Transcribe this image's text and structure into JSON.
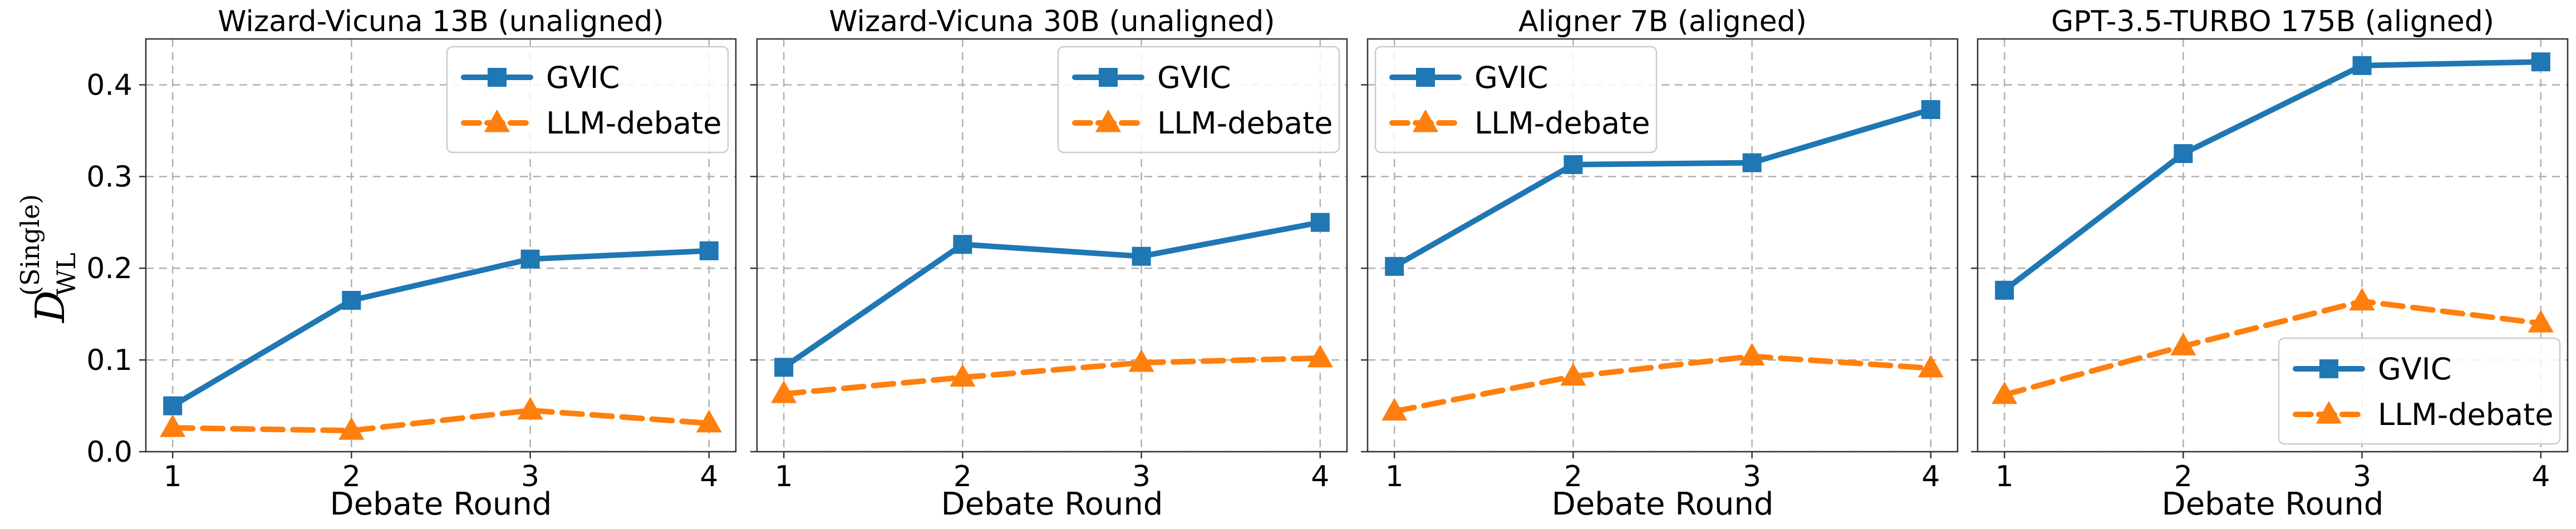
{
  "chart_data": [
    {
      "type": "line",
      "title": "Wizard-Vicuna 13B (unaligned)",
      "xlabel": "Debate Round",
      "ylabel_main": "D",
      "ylabel_sub": "WL",
      "ylabel_sup": "(Single)",
      "x": [
        1,
        2,
        3,
        4
      ],
      "xlim": [
        0.85,
        4.15
      ],
      "ylim": [
        0,
        0.45
      ],
      "yticks": [
        "0.0",
        "0.1",
        "0.2",
        "0.3",
        "0.4"
      ],
      "grid": true,
      "legend": "top-right",
      "series": [
        {
          "name": "GVIC",
          "values": [
            0.05,
            0.165,
            0.21,
            0.219
          ],
          "color": "#1f77b4",
          "marker": "square",
          "dash": "solid"
        },
        {
          "name": "LLM-debate",
          "values": [
            0.026,
            0.023,
            0.045,
            0.031
          ],
          "color": "#ff7f0e",
          "marker": "triangle",
          "dash": "dashed"
        }
      ]
    },
    {
      "type": "line",
      "title": "Wizard-Vicuna 30B (unaligned)",
      "xlabel": "Debate Round",
      "x": [
        1,
        2,
        3,
        4
      ],
      "xlim": [
        0.85,
        4.15
      ],
      "ylim": [
        0,
        0.45
      ],
      "grid": true,
      "legend": "top-right",
      "series": [
        {
          "name": "GVIC",
          "values": [
            0.092,
            0.226,
            0.213,
            0.25
          ],
          "color": "#1f77b4",
          "marker": "square",
          "dash": "solid"
        },
        {
          "name": "LLM-debate",
          "values": [
            0.063,
            0.081,
            0.097,
            0.102
          ],
          "color": "#ff7f0e",
          "marker": "triangle",
          "dash": "dashed"
        }
      ]
    },
    {
      "type": "line",
      "title": "Aligner 7B (aligned)",
      "xlabel": "Debate Round",
      "x": [
        1,
        2,
        3,
        4
      ],
      "xlim": [
        0.85,
        4.15
      ],
      "ylim": [
        0,
        0.45
      ],
      "grid": true,
      "legend": "top-left",
      "series": [
        {
          "name": "GVIC",
          "values": [
            0.202,
            0.313,
            0.315,
            0.373
          ],
          "color": "#1f77b4",
          "marker": "square",
          "dash": "solid"
        },
        {
          "name": "LLM-debate",
          "values": [
            0.044,
            0.082,
            0.104,
            0.091
          ],
          "color": "#ff7f0e",
          "marker": "triangle",
          "dash": "dashed"
        }
      ]
    },
    {
      "type": "line",
      "title": "GPT-3.5-TURBO 175B (aligned)",
      "xlabel": "Debate Round",
      "x": [
        1,
        2,
        3,
        4
      ],
      "xlim": [
        0.85,
        4.15
      ],
      "ylim": [
        0,
        0.45
      ],
      "grid": true,
      "legend": "bottom-right",
      "series": [
        {
          "name": "GVIC",
          "values": [
            0.176,
            0.325,
            0.421,
            0.425
          ],
          "color": "#1f77b4",
          "marker": "square",
          "dash": "solid"
        },
        {
          "name": "LLM-debate",
          "values": [
            0.062,
            0.115,
            0.164,
            0.14
          ],
          "color": "#ff7f0e",
          "marker": "triangle",
          "dash": "dashed"
        }
      ]
    }
  ]
}
